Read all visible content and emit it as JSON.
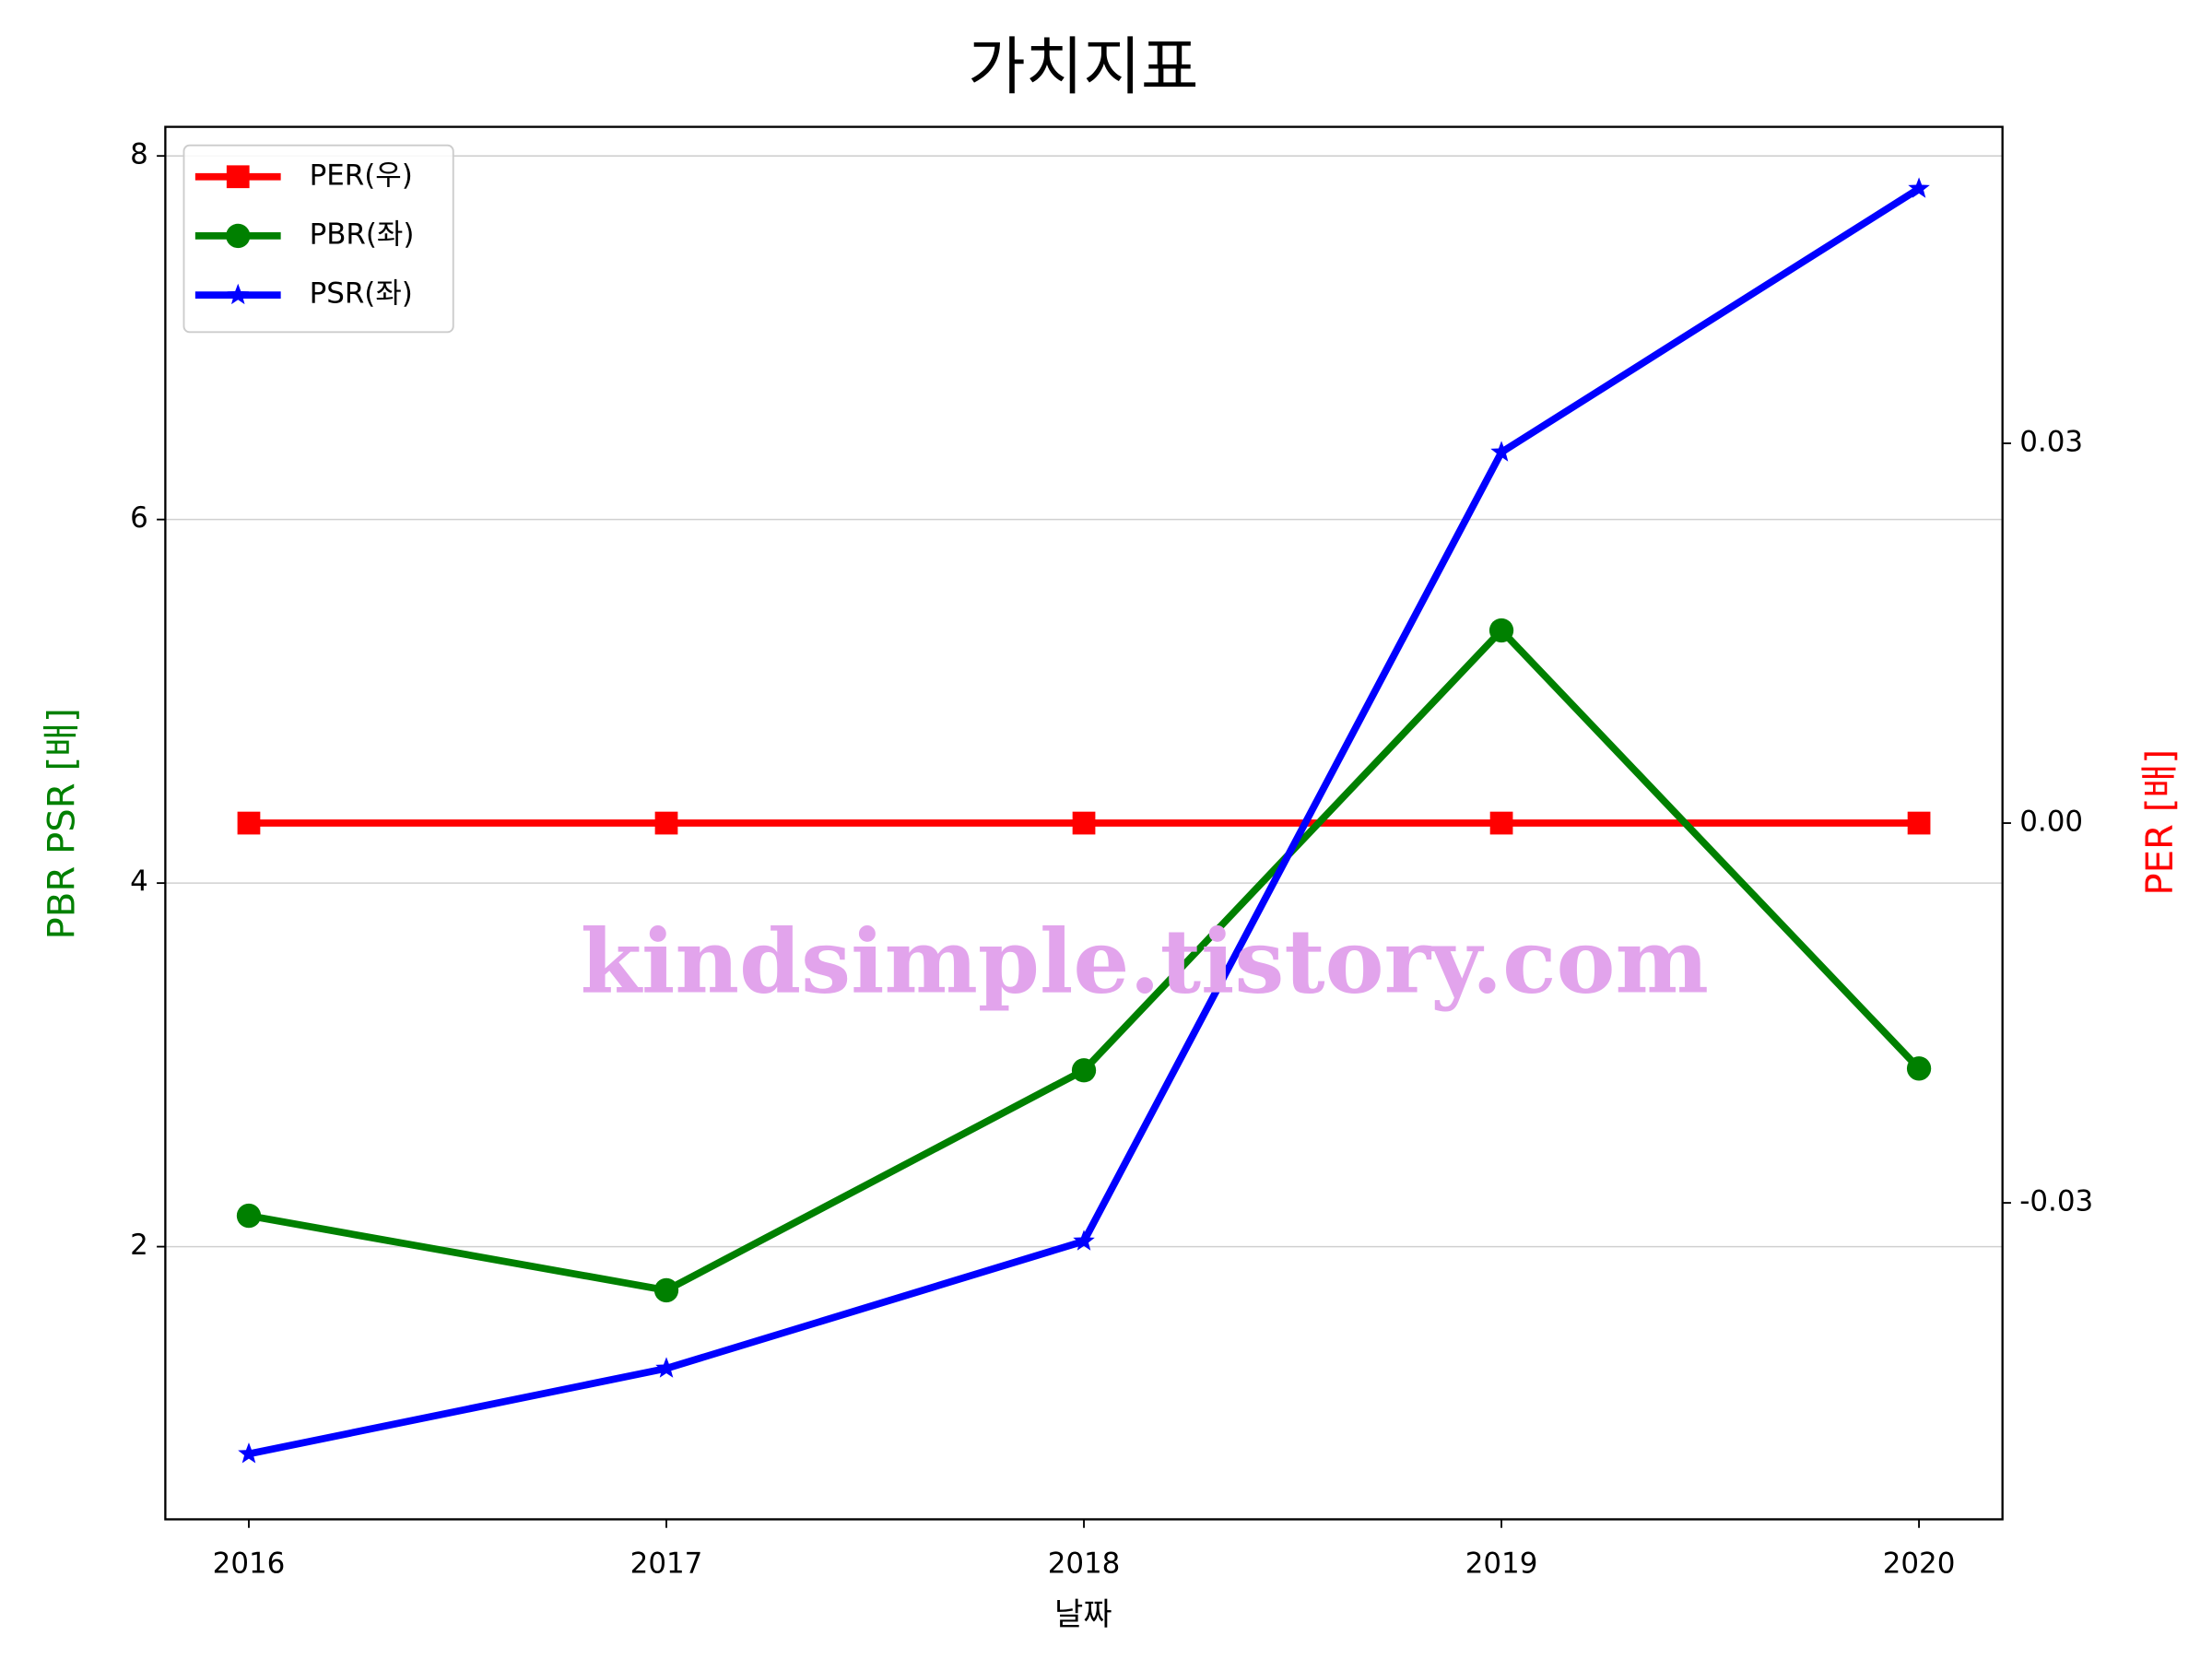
{
  "chart_data": {
    "type": "line",
    "title": "가치지표",
    "xlabel": "날짜",
    "ylabel": "PBR PSR [배]",
    "y2label": "PER [배]",
    "annotation": "kindsimple.tistory.com",
    "x": [
      2016,
      2017,
      2018,
      2019,
      2020
    ],
    "xlim": [
      2015.8,
      2020.2
    ],
    "xticks": [
      2016,
      2017,
      2018,
      2019,
      2020
    ],
    "ylim": [
      0.5,
      8.16
    ],
    "yticks": [
      2,
      4,
      6,
      8
    ],
    "y2lim": [
      -0.055,
      0.055
    ],
    "y2ticks": [
      -0.03,
      {
        "value": 0,
        "label": "0.00"
      },
      0.03
    ],
    "grid": true,
    "legend": "upper left",
    "series": [
      {
        "name": "PER(우)",
        "color": "#ff0000",
        "marker": "square",
        "axis": "y2",
        "values": [
          0,
          0,
          0,
          0,
          0
        ]
      },
      {
        "name": "PBR(좌)",
        "color": "#008000",
        "marker": "circle",
        "values": [
          2.17,
          1.76,
          2.97,
          5.39,
          2.98
        ]
      },
      {
        "name": "PSR(좌)",
        "color": "#0000ff",
        "marker": "star",
        "values": [
          0.86,
          1.33,
          2.03,
          6.37,
          7.82
        ]
      }
    ]
  }
}
